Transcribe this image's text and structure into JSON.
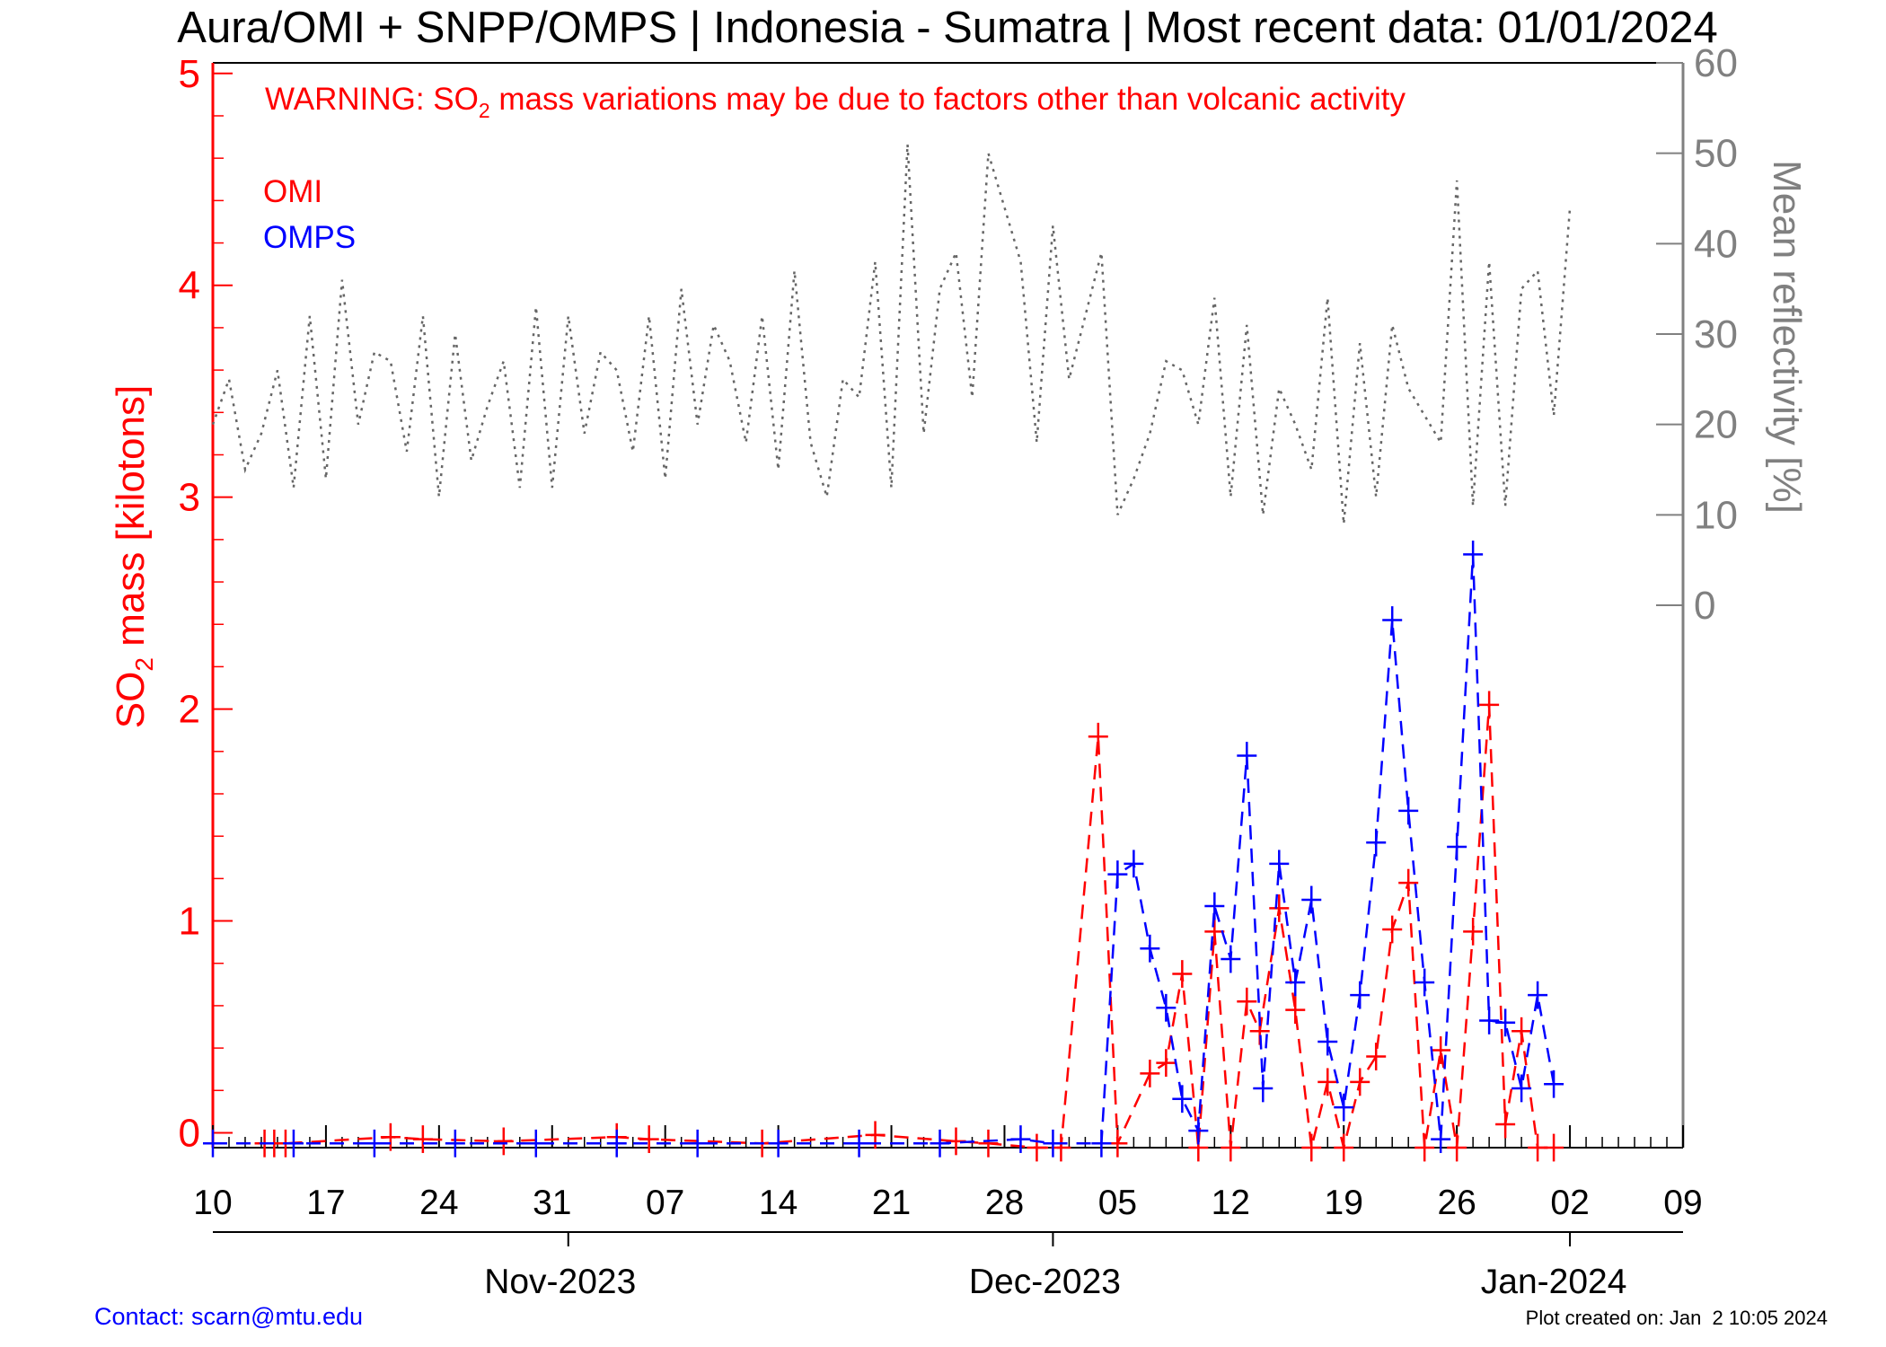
{
  "chart_data": {
    "type": "line",
    "title": "Aura/OMI + SNPP/OMPS | Indonesia - Sumatra | Most recent data: 01/01/2024",
    "warning": {
      "prefix": "WARNING: SO",
      "sub": "2",
      "suffix": " mass variations may be due to factors other than volcanic activity"
    },
    "ylabel": {
      "prefix": "SO",
      "sub": "2",
      "suffix": " mass [kilotons]"
    },
    "y2label": "Mean reflectivity [%]",
    "x_range": [
      0,
      91
    ],
    "ylim": [
      -0.07,
      5.05
    ],
    "y2lim": [
      -60,
      60
    ],
    "x_ticks": [
      {
        "x": 0,
        "label": "10"
      },
      {
        "x": 7,
        "label": "17"
      },
      {
        "x": 14,
        "label": "24"
      },
      {
        "x": 21,
        "label": "31"
      },
      {
        "x": 28,
        "label": "07"
      },
      {
        "x": 35,
        "label": "14"
      },
      {
        "x": 42,
        "label": "21"
      },
      {
        "x": 49,
        "label": "28"
      },
      {
        "x": 56,
        "label": "05"
      },
      {
        "x": 63,
        "label": "12"
      },
      {
        "x": 70,
        "label": "19"
      },
      {
        "x": 77,
        "label": "26"
      },
      {
        "x": 84,
        "label": "02"
      },
      {
        "x": 91,
        "label": "09"
      }
    ],
    "month_ticks": [
      {
        "x": 21.5,
        "label": "Nov-2023"
      },
      {
        "x": 51.5,
        "label": "Dec-2023"
      },
      {
        "x": 83,
        "label": "Jan-2024"
      }
    ],
    "y_ticks": [
      {
        "v": 0,
        "label": "0"
      },
      {
        "v": 1,
        "label": "1"
      },
      {
        "v": 2,
        "label": "2"
      },
      {
        "v": 3,
        "label": "3"
      },
      {
        "v": 4,
        "label": "4"
      },
      {
        "v": 5,
        "label": "5"
      }
    ],
    "y2_ticks": [
      {
        "v": 0,
        "label": "0"
      },
      {
        "v": 10,
        "label": "10"
      },
      {
        "v": 20,
        "label": "20"
      },
      {
        "v": 30,
        "label": "30"
      },
      {
        "v": 40,
        "label": "40"
      },
      {
        "v": 50,
        "label": "50"
      },
      {
        "v": 60,
        "label": "60"
      }
    ],
    "series": [
      {
        "name": "OMI",
        "color": "#ff0000",
        "axis": "left",
        "style": "dashed",
        "marker": "plus",
        "points": [
          [
            3.2,
            -0.05
          ],
          [
            3.8,
            -0.05
          ],
          [
            4.5,
            -0.05
          ],
          [
            11,
            -0.02
          ],
          [
            13,
            -0.03
          ],
          [
            18,
            -0.04
          ],
          [
            25,
            -0.02
          ],
          [
            27,
            -0.03
          ],
          [
            34,
            -0.05
          ],
          [
            41,
            -0.01
          ],
          [
            46,
            -0.04
          ],
          [
            48,
            -0.05
          ],
          [
            51,
            -0.07
          ],
          [
            52.5,
            -0.07
          ],
          [
            54.8,
            1.87
          ],
          [
            56,
            -0.05
          ],
          [
            58,
            0.28
          ],
          [
            59,
            0.33
          ],
          [
            60,
            0.75
          ],
          [
            61,
            -0.07
          ],
          [
            62,
            0.95
          ],
          [
            63,
            -0.07
          ],
          [
            64,
            0.62
          ],
          [
            64.8,
            0.48
          ],
          [
            66,
            1.06
          ],
          [
            67,
            0.58
          ],
          [
            68,
            -0.07
          ],
          [
            69,
            0.24
          ],
          [
            70,
            -0.07
          ],
          [
            71,
            0.24
          ],
          [
            72,
            0.36
          ],
          [
            73,
            0.96
          ],
          [
            74,
            1.18
          ],
          [
            75,
            -0.07
          ],
          [
            76,
            0.39
          ],
          [
            77,
            -0.07
          ],
          [
            78,
            0.95
          ],
          [
            79,
            2.02
          ],
          [
            80,
            0.04
          ],
          [
            81,
            0.48
          ],
          [
            82,
            -0.07
          ],
          [
            83,
            -0.07
          ]
        ]
      },
      {
        "name": "OMPS",
        "color": "#0000ff",
        "axis": "left",
        "style": "dashed",
        "marker": "plus",
        "points": [
          [
            0,
            -0.05
          ],
          [
            5,
            -0.05
          ],
          [
            10,
            -0.05
          ],
          [
            15,
            -0.05
          ],
          [
            20,
            -0.05
          ],
          [
            25,
            -0.05
          ],
          [
            30,
            -0.05
          ],
          [
            35,
            -0.05
          ],
          [
            40,
            -0.05
          ],
          [
            45,
            -0.05
          ],
          [
            50,
            -0.03
          ],
          [
            52,
            -0.05
          ],
          [
            55,
            -0.05
          ],
          [
            56,
            1.22
          ],
          [
            57,
            1.27
          ],
          [
            58,
            0.87
          ],
          [
            59,
            0.59
          ],
          [
            60,
            0.16
          ],
          [
            61,
            0.01
          ],
          [
            62,
            1.07
          ],
          [
            63,
            0.82
          ],
          [
            64,
            1.78
          ],
          [
            65,
            0.21
          ],
          [
            66,
            1.27
          ],
          [
            67,
            0.71
          ],
          [
            68,
            1.1
          ],
          [
            69,
            0.43
          ],
          [
            70,
            0.12
          ],
          [
            71,
            0.65
          ],
          [
            72,
            1.37
          ],
          [
            73,
            2.42
          ],
          [
            74,
            1.52
          ],
          [
            75,
            0.71
          ],
          [
            76,
            -0.03
          ],
          [
            77,
            1.35
          ],
          [
            78,
            2.73
          ],
          [
            79,
            0.53
          ],
          [
            80,
            0.52
          ],
          [
            81,
            0.21
          ],
          [
            82,
            0.65
          ],
          [
            83,
            0.23
          ]
        ]
      },
      {
        "name": "Mean reflectivity",
        "color": "#666666",
        "axis": "right",
        "style": "dotted",
        "marker": "none",
        "points": [
          [
            0,
            20
          ],
          [
            1,
            25
          ],
          [
            2,
            15
          ],
          [
            3,
            19
          ],
          [
            4,
            26
          ],
          [
            5,
            13
          ],
          [
            6,
            32
          ],
          [
            7,
            14
          ],
          [
            8,
            36
          ],
          [
            9,
            20
          ],
          [
            10,
            28
          ],
          [
            11,
            27
          ],
          [
            12,
            17
          ],
          [
            13,
            32
          ],
          [
            14,
            12
          ],
          [
            15,
            30
          ],
          [
            16,
            16
          ],
          [
            17,
            22
          ],
          [
            18,
            27
          ],
          [
            19,
            13
          ],
          [
            20,
            33
          ],
          [
            21,
            13
          ],
          [
            22,
            32
          ],
          [
            23,
            19
          ],
          [
            24,
            28
          ],
          [
            25,
            26
          ],
          [
            26,
            17
          ],
          [
            27,
            32
          ],
          [
            28,
            14
          ],
          [
            29,
            35
          ],
          [
            30,
            20
          ],
          [
            31,
            31
          ],
          [
            32,
            27
          ],
          [
            33,
            18
          ],
          [
            34,
            32
          ],
          [
            35,
            15
          ],
          [
            36,
            37
          ],
          [
            37,
            18
          ],
          [
            38,
            12
          ],
          [
            39,
            25
          ],
          [
            40,
            23
          ],
          [
            41,
            38
          ],
          [
            42,
            13
          ],
          [
            43,
            51
          ],
          [
            44,
            19
          ],
          [
            45,
            35
          ],
          [
            46,
            39
          ],
          [
            47,
            23
          ],
          [
            48,
            50
          ],
          [
            49,
            44
          ],
          [
            50,
            38
          ],
          [
            51,
            18
          ],
          [
            52,
            42
          ],
          [
            53,
            25
          ],
          [
            54,
            32
          ],
          [
            55,
            39
          ],
          [
            56,
            10
          ],
          [
            57,
            14
          ],
          [
            58,
            19
          ],
          [
            59,
            27
          ],
          [
            60,
            26
          ],
          [
            61,
            20
          ],
          [
            62,
            34
          ],
          [
            63,
            12
          ],
          [
            64,
            31
          ],
          [
            65,
            10
          ],
          [
            66,
            24
          ],
          [
            67,
            20
          ],
          [
            68,
            15
          ],
          [
            69,
            34
          ],
          [
            70,
            9
          ],
          [
            71,
            29
          ],
          [
            72,
            12
          ],
          [
            73,
            31
          ],
          [
            74,
            24
          ],
          [
            75,
            21
          ],
          [
            76,
            18
          ],
          [
            77,
            47
          ],
          [
            78,
            11
          ],
          [
            79,
            38
          ],
          [
            80,
            11
          ],
          [
            81,
            35
          ],
          [
            82,
            37
          ],
          [
            83,
            21
          ],
          [
            84,
            44
          ]
        ]
      }
    ],
    "legend": [
      {
        "label": "OMI",
        "color": "#ff0000"
      },
      {
        "label": "OMPS",
        "color": "#0000ff"
      }
    ],
    "legend_position": "top-left",
    "grid": false
  },
  "footer": {
    "contact": "Contact: scarn@mtu.edu",
    "created": "Plot created on: Jan  2 10:05 2024"
  }
}
